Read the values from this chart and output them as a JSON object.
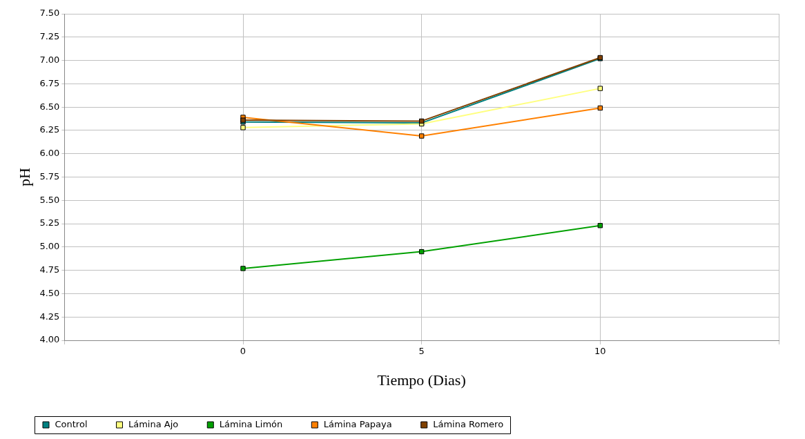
{
  "chart_data": {
    "type": "line",
    "xlabel": "Tiempo (Dias)",
    "ylabel": "pH",
    "x": [
      0,
      5,
      10
    ],
    "xlim": [
      -5,
      15
    ],
    "xticks": [
      {
        "value": -5,
        "label": null
      },
      0,
      5,
      10,
      {
        "value": 15,
        "label": null
      }
    ],
    "ylim": [
      4,
      7.5
    ],
    "yticks": [
      {
        "value": 4,
        "label": "4.00"
      },
      {
        "value": 4.25,
        "label": "4.25"
      },
      {
        "value": 4.5,
        "label": "4.50"
      },
      {
        "value": 4.75,
        "label": "4.75"
      },
      {
        "value": 5,
        "label": "5.00"
      },
      {
        "value": 5.25,
        "label": "5.25"
      },
      {
        "value": 5.5,
        "label": "5.50"
      },
      {
        "value": 5.75,
        "label": "5.75"
      },
      {
        "value": 6,
        "label": "6.00"
      },
      {
        "value": 6.25,
        "label": "6.25"
      },
      {
        "value": 6.5,
        "label": "6.50"
      },
      {
        "value": 6.75,
        "label": "6.75"
      },
      {
        "value": 7,
        "label": "7.00"
      },
      {
        "value": 7.25,
        "label": "7.25"
      },
      {
        "value": 7.5,
        "label": "7.50"
      }
    ],
    "grid": true,
    "legend": "bottom",
    "marker": "square",
    "line_style": "solid",
    "series": [
      {
        "name": "Control",
        "color": "#008080",
        "values": [
          6.34,
          6.33,
          7.02
        ]
      },
      {
        "name": "Lámina Ajo",
        "color": "#ffff80",
        "values": [
          6.28,
          6.32,
          6.7
        ]
      },
      {
        "name": "Lámina Limón",
        "color": "#00a000",
        "values": [
          4.77,
          4.95,
          5.23
        ]
      },
      {
        "name": "Lámina Papaya",
        "color": "#ff8000",
        "values": [
          6.39,
          6.19,
          6.49
        ]
      },
      {
        "name": "Lámina Romero",
        "color": "#804000",
        "values": [
          6.36,
          6.35,
          7.03
        ]
      }
    ]
  }
}
